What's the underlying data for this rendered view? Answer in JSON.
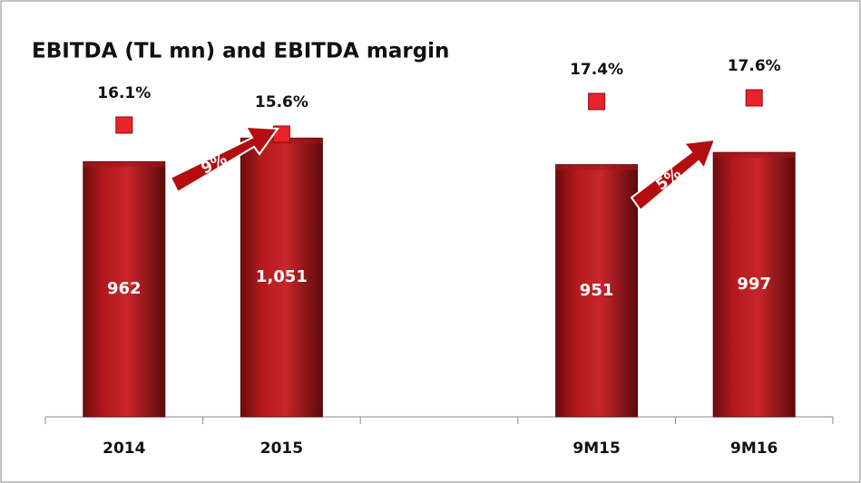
{
  "chart_data": {
    "type": "bar",
    "title": "EBITDA (TL mn) and EBITDA margin",
    "categories": [
      "2014",
      "2015",
      null,
      "9M15",
      "9M16"
    ],
    "series": [
      {
        "name": "EBITDA",
        "color": "#a11618",
        "values": [
          962,
          1051,
          null,
          951,
          997
        ],
        "value_labels": [
          "962",
          "1,051",
          null,
          "951",
          "997"
        ]
      },
      {
        "name": "EBITDA margin",
        "color": "#e8232a",
        "axis": "y2",
        "values": [
          16.1,
          15.6,
          null,
          17.4,
          17.6
        ],
        "value_labels": [
          "16.1%",
          "15.6%",
          null,
          "17.4%",
          "17.6%"
        ]
      }
    ],
    "ylim": [
      0,
      1230
    ],
    "y2lim": [
      0,
      18
    ],
    "annotations": [
      "9%",
      "5%"
    ]
  }
}
